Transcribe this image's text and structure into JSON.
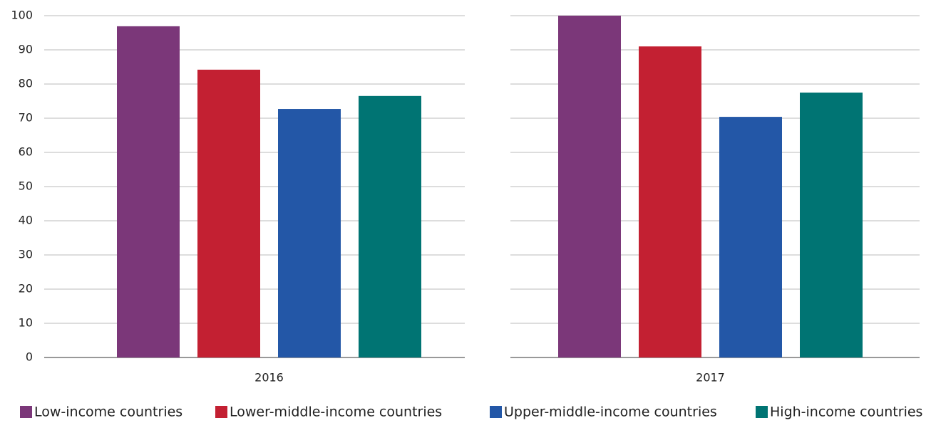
{
  "chart_data": {
    "type": "bar",
    "categories": [
      "2016",
      "2017"
    ],
    "series": [
      {
        "name": "Low-income countries",
        "color": "#7b3779",
        "values": [
          96.9,
          100
        ]
      },
      {
        "name": "Lower-middle-income countries",
        "color": "#c32032",
        "values": [
          84.2,
          91
        ]
      },
      {
        "name": "Upper-middle-income countries",
        "color": "#2357a7",
        "values": [
          72.7,
          70.4
        ]
      },
      {
        "name": "High-income countries",
        "color": "#007473",
        "values": [
          76.5,
          77.5
        ]
      }
    ],
    "ylim": [
      0,
      100
    ],
    "yticks": [
      0,
      10,
      20,
      30,
      40,
      50,
      60,
      70,
      80,
      90,
      100
    ],
    "grid": true,
    "legend": "bottom"
  }
}
